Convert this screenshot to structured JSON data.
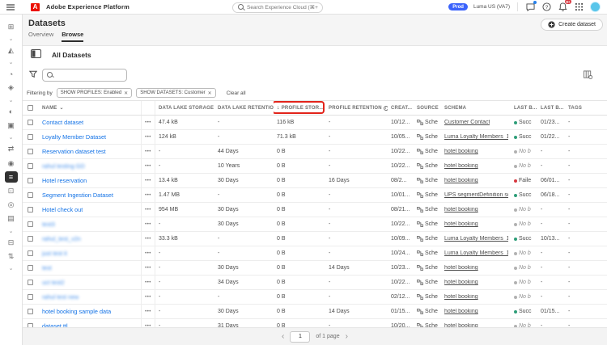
{
  "topbar": {
    "app_title": "Adobe Experience Platform",
    "search_placeholder": "Search Experience Cloud (⌘+/)",
    "env_badge": "Prod",
    "org": "Luma US (VA7)",
    "notification_count": "9+"
  },
  "icons": {
    "chevron_down": "⌄",
    "sort_desc": "↓",
    "info": "i",
    "close": "✕",
    "dots": "•••",
    "prev": "‹",
    "next": "›"
  },
  "sidebar": {
    "items": [
      {
        "name": "connections-icon",
        "glyph": "⊞"
      },
      {
        "name": "chevron-down-icon",
        "glyph": "⌄"
      },
      {
        "name": "audiences-icon",
        "glyph": "◭"
      },
      {
        "name": "chevron-down-icon",
        "glyph": "⌄"
      },
      {
        "name": "profiles-icon",
        "glyph": "◔"
      },
      {
        "name": "segments-icon",
        "glyph": "◈"
      },
      {
        "name": "chevron-down-icon",
        "glyph": "⌄"
      },
      {
        "name": "experience-events-icon",
        "glyph": "◐"
      },
      {
        "name": "browser-icon",
        "glyph": "▣"
      },
      {
        "name": "chevron-down-icon",
        "glyph": "⌄"
      },
      {
        "name": "workflows-icon",
        "glyph": "⇄"
      },
      {
        "name": "places-icon",
        "glyph": "◉"
      },
      {
        "name": "datasets-icon",
        "glyph": "≡",
        "selected": true
      },
      {
        "name": "queries-icon",
        "glyph": "⊡"
      },
      {
        "name": "monitoring-icon",
        "glyph": "◎"
      },
      {
        "name": "dashboards-icon",
        "glyph": "▤"
      },
      {
        "name": "chevron-down-icon",
        "glyph": "⌄"
      },
      {
        "name": "schemas-icon",
        "glyph": "⊟"
      },
      {
        "name": "sources-icon",
        "glyph": "⇅"
      },
      {
        "name": "chevron-down-icon",
        "glyph": "⌄"
      }
    ]
  },
  "page": {
    "title": "Datasets",
    "tabs": [
      {
        "label": "Overview",
        "active": false
      },
      {
        "label": "Browse",
        "active": true
      }
    ],
    "create_button": "Create dataset",
    "section_title": "All Datasets",
    "filtering_by_label": "Filtering by",
    "filters": [
      "SHOW PROFILES: Enabled",
      "SHOW DATASETS: Customer"
    ],
    "clear_all": "Clear all"
  },
  "table": {
    "headers": {
      "name": "NAME",
      "data_lake_storage": "DATA LAKE STORAGE",
      "data_lake_retention": "DATA LAKE RETENTION",
      "profile_storage": "PROFILE STOR...",
      "profile_retention": "PROFILE RETENTION",
      "created": "CREAT...",
      "source": "SOURCE",
      "schema": "SCHEMA",
      "last_batch_status": "LAST B...",
      "last_batch_date": "LAST B...",
      "tags": "TAGS"
    },
    "rows": [
      {
        "name": "Contact dataset",
        "blurred": false,
        "data_lake_storage": "47.4 kB",
        "data_lake_retention": "-",
        "profile_storage": "116 kB",
        "profile_retention": "-",
        "created": "10/12...",
        "source": "Sche",
        "schema": "Customer Contact",
        "status": "Succ",
        "status_color": "green",
        "last_batch": "01/23...",
        "tags": "-"
      },
      {
        "name": "Loyalty Member Dataset",
        "blurred": false,
        "data_lake_storage": "124 kB",
        "data_lake_retention": "-",
        "profile_storage": "71.3 kB",
        "profile_retention": "-",
        "created": "10/05...",
        "source": "Sche",
        "schema": "Luma Loyalty Members_16...",
        "status": "Succ",
        "status_color": "green",
        "last_batch": "01/22...",
        "tags": "-"
      },
      {
        "name": "Reservation dataset test",
        "blurred": false,
        "data_lake_storage": "-",
        "data_lake_retention": "44 Days",
        "profile_storage": "0 B",
        "profile_retention": "-",
        "created": "10/22...",
        "source": "Sche",
        "schema": "hotel booking",
        "status": "No b",
        "status_color": "gray",
        "last_batch": "-",
        "tags": "-"
      },
      {
        "name": "rahul testing GD",
        "blurred": true,
        "data_lake_storage": "-",
        "data_lake_retention": "10 Years",
        "profile_storage": "0 B",
        "profile_retention": "-",
        "created": "10/22...",
        "source": "Sche",
        "schema": "hotel booking",
        "status": "No b",
        "status_color": "gray",
        "last_batch": "-",
        "tags": "-"
      },
      {
        "name": "Hotel reservation",
        "blurred": false,
        "data_lake_storage": "13.4 kB",
        "data_lake_retention": "30 Days",
        "profile_storage": "0 B",
        "profile_retention": "16 Days",
        "created": "08/2...",
        "source": "Sche",
        "schema": "hotel booking",
        "status": "Faile",
        "status_color": "red",
        "last_batch": "06/01...",
        "tags": "-"
      },
      {
        "name": "Segment Ingestion Dataset",
        "blurred": false,
        "data_lake_storage": "1.47 MB",
        "data_lake_retention": "-",
        "profile_storage": "0 B",
        "profile_retention": "-",
        "created": "10/01...",
        "source": "Sche",
        "schema": "UPS segmentDefinition sch...",
        "status": "Succ",
        "status_color": "green",
        "last_batch": "06/18...",
        "tags": "-"
      },
      {
        "name": "Hotel check out",
        "blurred": false,
        "data_lake_storage": "954 MB",
        "data_lake_retention": "30 Days",
        "profile_storage": "0 B",
        "profile_retention": "-",
        "created": "08/21...",
        "source": "Sche",
        "schema": "hotel booking",
        "status": "No b",
        "status_color": "gray",
        "last_batch": "-",
        "tags": "-"
      },
      {
        "name": "test3",
        "blurred": true,
        "data_lake_storage": "-",
        "data_lake_retention": "30 Days",
        "profile_storage": "0 B",
        "profile_retention": "-",
        "created": "10/22...",
        "source": "Sche",
        "schema": "hotel booking",
        "status": "No b",
        "status_color": "gray",
        "last_batch": "-",
        "tags": "-"
      },
      {
        "name": "rahul_test_v2n",
        "blurred": true,
        "data_lake_storage": "33.3 kB",
        "data_lake_retention": "-",
        "profile_storage": "0 B",
        "profile_retention": "-",
        "created": "10/09...",
        "source": "Sche",
        "schema": "Luma Loyalty Members_16...",
        "status": "Succ",
        "status_color": "green",
        "last_batch": "10/13...",
        "tags": "-"
      },
      {
        "name": "just test it",
        "blurred": true,
        "data_lake_storage": "-",
        "data_lake_retention": "-",
        "profile_storage": "0 B",
        "profile_retention": "-",
        "created": "10/24...",
        "source": "Sche",
        "schema": "Luma Loyalty Members_16...",
        "status": "No b",
        "status_color": "gray",
        "last_batch": "-",
        "tags": "-"
      },
      {
        "name": "test",
        "blurred": true,
        "data_lake_storage": "-",
        "data_lake_retention": "30 Days",
        "profile_storage": "0 B",
        "profile_retention": "14 Days",
        "created": "10/23...",
        "source": "Sche",
        "schema": "hotel booking",
        "status": "No b",
        "status_color": "gray",
        "last_batch": "-",
        "tags": "-"
      },
      {
        "name": "uct test2",
        "blurred": true,
        "data_lake_storage": "-",
        "data_lake_retention": "34 Days",
        "profile_storage": "0 B",
        "profile_retention": "-",
        "created": "10/22...",
        "source": "Sche",
        "schema": "hotel booking",
        "status": "No b",
        "status_color": "gray",
        "last_batch": "-",
        "tags": "-"
      },
      {
        "name": "rahul test new",
        "blurred": true,
        "data_lake_storage": "-",
        "data_lake_retention": "-",
        "profile_storage": "0 B",
        "profile_retention": "-",
        "created": "02/12...",
        "source": "Sche",
        "schema": "hotel booking",
        "status": "No b",
        "status_color": "gray",
        "last_batch": "-",
        "tags": "-"
      },
      {
        "name": "hotel booking sample data",
        "blurred": false,
        "data_lake_storage": "-",
        "data_lake_retention": "30 Days",
        "profile_storage": "0 B",
        "profile_retention": "14 Days",
        "created": "01/15...",
        "source": "Sche",
        "schema": "hotel booking",
        "status": "Succ",
        "status_color": "green",
        "last_batch": "01/15...",
        "tags": "-"
      },
      {
        "name": "dataset ttl",
        "blurred": false,
        "data_lake_storage": "-",
        "data_lake_retention": "31 Days",
        "profile_storage": "0 B",
        "profile_retention": "-",
        "created": "10/20...",
        "source": "Sche",
        "schema": "hotel booking",
        "status": "No b",
        "status_color": "gray",
        "last_batch": "-",
        "tags": "-"
      }
    ]
  },
  "pagination": {
    "current": "1",
    "label": "of 1 page"
  }
}
